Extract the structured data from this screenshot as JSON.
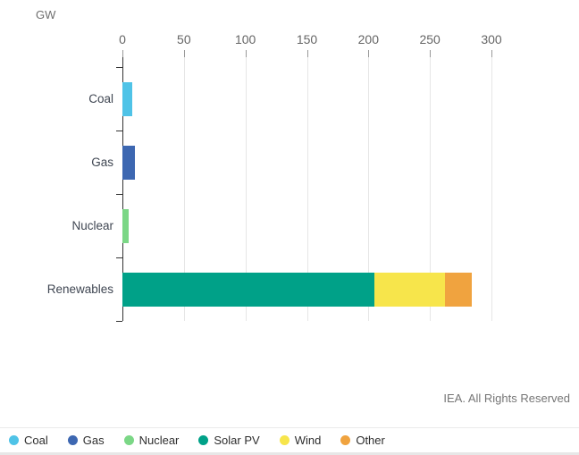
{
  "header": {
    "unit_label": "GW"
  },
  "footer": {
    "credit": "IEA. All Rights Reserved"
  },
  "chart_data": {
    "type": "bar",
    "orientation": "horizontal",
    "title": "",
    "xlabel": "GW",
    "ylabel": "",
    "xlim": [
      0,
      300
    ],
    "x_ticks": [
      0,
      50,
      100,
      150,
      200,
      250,
      300
    ],
    "grid": true,
    "legend_position": "bottom",
    "categories": [
      "Coal",
      "Gas",
      "Nuclear",
      "Renewables"
    ],
    "series": [
      {
        "name": "Coal",
        "color": "#4fc3e7"
      },
      {
        "name": "Gas",
        "color": "#3d67b1"
      },
      {
        "name": "Nuclear",
        "color": "#7bd786"
      },
      {
        "name": "Solar PV",
        "color": "#00a188"
      },
      {
        "name": "Wind",
        "color": "#f7e54b"
      },
      {
        "name": "Other",
        "color": "#f0a33f"
      }
    ],
    "rows": [
      {
        "category": "Coal",
        "segments": [
          {
            "series": "Coal",
            "value": 8
          }
        ]
      },
      {
        "category": "Gas",
        "segments": [
          {
            "series": "Gas",
            "value": 10
          }
        ]
      },
      {
        "category": "Nuclear",
        "segments": [
          {
            "series": "Nuclear",
            "value": 5
          }
        ]
      },
      {
        "category": "Renewables",
        "segments": [
          {
            "series": "Solar PV",
            "value": 205
          },
          {
            "series": "Wind",
            "value": 57
          },
          {
            "series": "Other",
            "value": 22
          }
        ]
      }
    ]
  }
}
